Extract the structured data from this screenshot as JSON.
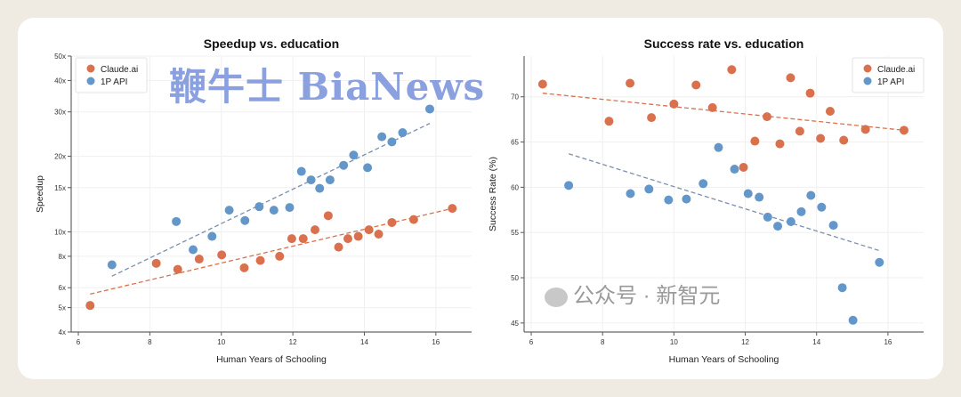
{
  "colors": {
    "claude": "#d9714e",
    "api": "#6497c9",
    "trend_claude": "#d9714e",
    "trend_api": "#7b8fae",
    "background": "#efebe3"
  },
  "watermarks": {
    "bianews": "鞭牛士 BiaNews",
    "wechat": "公众号 · 新智元"
  },
  "chart_data": [
    {
      "type": "scatter",
      "title": "Speedup vs. education",
      "xlabel": "Human Years of Schooling",
      "ylabel": "Speedup",
      "yscale": "log",
      "xlim": [
        5.8,
        17.0
      ],
      "ylim": [
        4,
        50
      ],
      "xticks": [
        6,
        8,
        10,
        12,
        14,
        16
      ],
      "yticks": [
        4,
        5,
        6,
        8,
        10,
        15,
        20,
        30,
        40,
        50
      ],
      "ytick_labels": [
        "4x",
        "5x",
        "6x",
        "8x",
        "10x",
        "15x",
        "20x",
        "30x",
        "40x",
        "50x"
      ],
      "grid": true,
      "legend": "top-left",
      "series": [
        {
          "name": "Claude.ai",
          "color": "#d9714e",
          "x": [
            6.33,
            8.18,
            8.78,
            9.38,
            10.01,
            10.64,
            11.09,
            11.63,
            11.97,
            12.29,
            12.62,
            12.99,
            13.28,
            13.54,
            13.83,
            14.13,
            14.4,
            14.77,
            15.38,
            16.46
          ],
          "y": [
            5.1,
            7.5,
            7.1,
            7.8,
            8.1,
            7.2,
            7.7,
            8.0,
            9.4,
            9.4,
            10.2,
            11.6,
            8.7,
            9.4,
            9.6,
            10.2,
            9.8,
            10.9,
            11.2,
            12.4
          ],
          "trend": {
            "x": [
              6.33,
              16.46
            ],
            "y": [
              5.66,
              12.4
            ]
          }
        },
        {
          "name": "1P API",
          "color": "#6497c9",
          "x": [
            6.94,
            8.74,
            9.21,
            9.74,
            10.22,
            10.66,
            11.06,
            11.47,
            11.91,
            12.24,
            12.51,
            12.75,
            13.04,
            13.42,
            13.7,
            14.09,
            14.49,
            14.77,
            15.07,
            15.83
          ],
          "y": [
            7.4,
            11.0,
            8.5,
            9.6,
            12.2,
            11.1,
            12.6,
            12.2,
            12.5,
            17.4,
            16.1,
            14.9,
            16.1,
            18.4,
            20.2,
            18.0,
            23.9,
            22.8,
            24.8,
            30.8
          ],
          "trend": {
            "x": [
              6.94,
              15.83
            ],
            "y": [
              6.67,
              27.0
            ]
          }
        }
      ]
    },
    {
      "type": "scatter",
      "title": "Success rate vs. education",
      "xlabel": "Human Years of Schooling",
      "ylabel": "Success Rate (%)",
      "yscale": "linear",
      "xlim": [
        5.8,
        17.0
      ],
      "ylim": [
        44,
        74.5
      ],
      "xticks": [
        6,
        8,
        10,
        12,
        14,
        16
      ],
      "yticks": [
        45,
        50,
        55,
        60,
        65,
        70
      ],
      "ytick_labels": [
        "45",
        "50",
        "55",
        "60",
        "65",
        "70"
      ],
      "grid": true,
      "legend": "top-right",
      "series": [
        {
          "name": "Claude.ai",
          "color": "#d9714e",
          "x": [
            6.32,
            8.18,
            8.77,
            9.37,
            10.0,
            10.62,
            11.08,
            11.62,
            11.95,
            12.27,
            12.61,
            12.97,
            13.27,
            13.53,
            13.82,
            14.11,
            14.38,
            14.76,
            15.37,
            16.45
          ],
          "y": [
            71.4,
            67.3,
            71.5,
            67.7,
            69.2,
            71.3,
            68.8,
            73.0,
            62.2,
            65.1,
            67.8,
            64.8,
            72.1,
            66.2,
            70.4,
            65.4,
            68.4,
            65.2,
            66.4,
            66.3
          ],
          "trend": {
            "x": [
              6.32,
              16.45
            ],
            "y": [
              70.4,
              66.3
            ]
          }
        },
        {
          "name": "1P API",
          "color": "#6497c9",
          "x": [
            7.05,
            8.78,
            9.3,
            9.85,
            10.35,
            10.82,
            11.25,
            11.7,
            12.08,
            12.39,
            12.63,
            12.91,
            13.28,
            13.57,
            13.84,
            14.14,
            14.47,
            14.72,
            15.02,
            15.76
          ],
          "y": [
            60.2,
            59.3,
            59.8,
            58.6,
            58.7,
            60.4,
            64.4,
            62.0,
            59.3,
            58.9,
            56.7,
            55.7,
            56.2,
            57.3,
            59.1,
            57.8,
            55.8,
            48.9,
            45.3,
            51.7
          ],
          "trend": {
            "x": [
              7.05,
              15.76
            ],
            "y": [
              63.7,
              53.0
            ]
          }
        }
      ]
    }
  ]
}
